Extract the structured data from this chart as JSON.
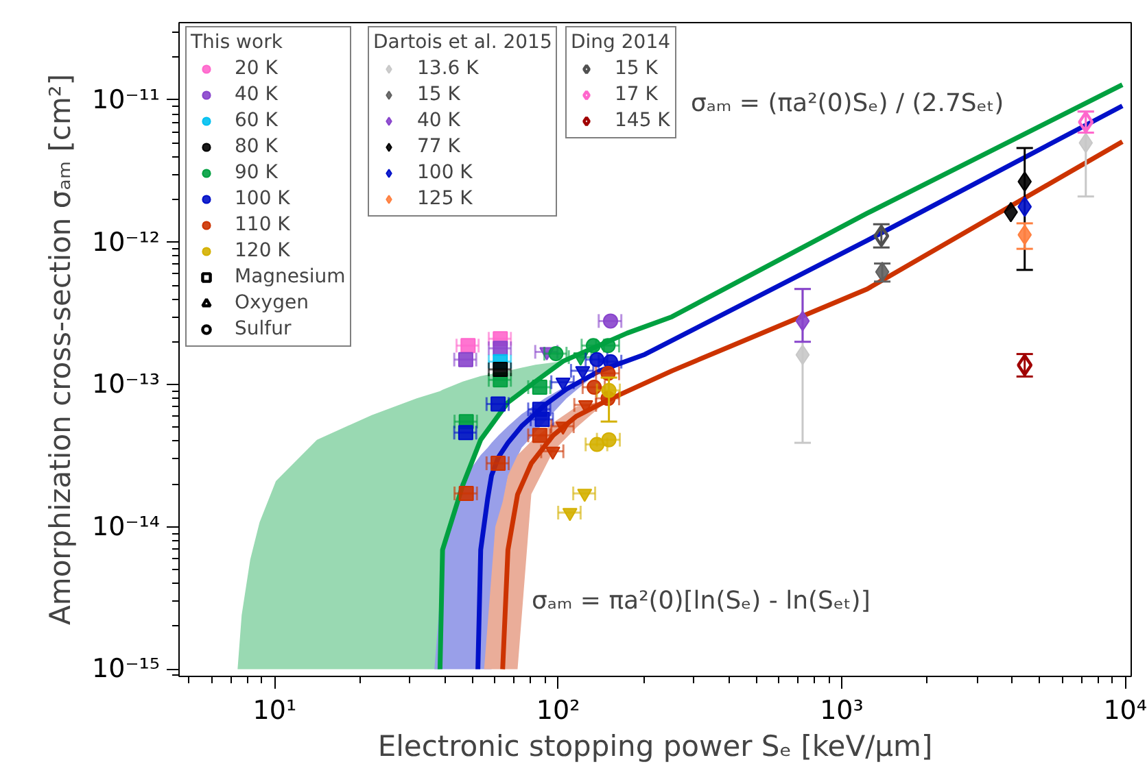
{
  "chart_data": {
    "type": "scatter",
    "xlabel": "Electronic stopping power Sₑ [keV/µm]",
    "ylabel": "Amorphization cross-section σₐₘ [cm²]",
    "log": "xy",
    "grid": false,
    "legend": "top left",
    "legend_title": [
      "This work",
      "Dartois et al. 2015",
      "Ding 2014"
    ],
    "xlim": [
      4.6,
      10500
    ],
    "ylim": [
      8.9e-16,
      3.5e-11
    ],
    "xticks": [
      {
        "value": 10,
        "label": "10¹"
      },
      {
        "value": 100,
        "label": "10²"
      },
      {
        "value": 1000,
        "label": "10³"
      },
      {
        "value": 10000,
        "label": "10⁴"
      }
    ],
    "yticks": [
      {
        "value": 1e-15,
        "label": "10⁻¹⁵"
      },
      {
        "value": 1e-14,
        "label": "10⁻¹⁴"
      },
      {
        "value": 1e-13,
        "label": "10⁻¹³"
      },
      {
        "value": 1e-12,
        "label": "10⁻¹²"
      },
      {
        "value": 1e-11,
        "label": "10⁻¹¹"
      }
    ],
    "annotations": [
      "σₐₘ  = (πa²(0)Sₑ) / (2.7Sₑₜ)",
      "σₐₘ  = πa²(0)[ln(Sₑ) - ln(Sₑₜ)]"
    ],
    "series": [
      {
        "type": "line",
        "color": "#00a040",
        "x": [
          7.4,
          7.65,
          8.2,
          8.85,
          10.1,
          14.1,
          22,
          31.7,
          38.3,
          39.1,
          46.1,
          53.3,
          66.5,
          83.1,
          104,
          175,
          252,
          1230,
          9770
        ],
        "values": [
          null,
          null,
          null,
          null,
          null,
          null,
          null,
          null,
          1e-15,
          6.9e-15,
          1.97e-14,
          4.1e-14,
          7.5e-14,
          1.05e-13,
          1.46e-13,
          2.3e-13,
          3e-13,
          1.6e-12,
          1.28e-11
        ],
        "upper": [
          1e-15,
          2.4e-15,
          5.9e-15,
          1.08e-14,
          2.1e-14,
          4.1e-14,
          6.1e-14,
          8e-14,
          9e-14,
          9.2e-14,
          1.05e-13,
          1.15e-13,
          1.25e-13,
          1.38e-13,
          1.46e-13,
          null,
          null,
          null,
          null
        ],
        "lower": [
          1e-15,
          1e-15,
          1e-15,
          1e-15,
          1e-15,
          1e-15,
          1e-15,
          1e-15,
          1e-15,
          6.9e-15,
          1.97e-14,
          4.1e-14,
          7.5e-14,
          1.05e-13,
          1.46e-13,
          null,
          null,
          null,
          null
        ]
      },
      {
        "type": "line",
        "color": "#0010c8",
        "x": [
          36.6,
          39.5,
          45,
          52.1,
          53.3,
          56.4,
          58.2,
          61.6,
          66.5,
          74.3,
          89.7,
          107,
          140,
          202,
          1230,
          9770
        ],
        "values": [
          null,
          null,
          null,
          1e-15,
          6.9e-15,
          1.58e-14,
          2.3e-14,
          3.1e-14,
          3.9e-14,
          5.1e-14,
          7.2e-14,
          9.3e-14,
          1.25e-13,
          1.63e-13,
          1.03e-12,
          9.1e-12
        ],
        "upper": [
          1e-15,
          6.9e-15,
          2e-14,
          3e-14,
          3.2e-14,
          3.6e-14,
          3.9e-14,
          4.4e-14,
          5.1e-14,
          6.2e-14,
          8e-14,
          9.8e-14,
          1.25e-13,
          null,
          null,
          null
        ],
        "lower": [
          1e-15,
          1e-15,
          1e-15,
          1e-15,
          1e-15,
          1e-15,
          1e-15,
          1e-14,
          2.25e-14,
          3.6e-14,
          5.5e-14,
          8e-14,
          1.25e-13,
          null,
          null,
          null
        ]
      },
      {
        "type": "line",
        "color": "#cc3300",
        "x": [
          54.8,
          60,
          63.7,
          66.5,
          71.9,
          80.4,
          96,
          116,
          150,
          252,
          1230,
          9770
        ],
        "values": [
          null,
          null,
          1e-15,
          6.9e-15,
          1.69e-14,
          2.8e-14,
          4.4e-14,
          6e-14,
          7.8e-14,
          1.25e-13,
          4.7e-13,
          5.1e-12
        ],
        "upper": [
          1e-15,
          1e-14,
          1.5e-14,
          2.3e-14,
          3.2e-14,
          4e-14,
          5.4e-14,
          7e-14,
          7.8e-14,
          null,
          null,
          null
        ],
        "lower": [
          1e-15,
          1e-15,
          1e-15,
          1e-15,
          1e-15,
          1.7e-14,
          3.4e-14,
          5e-14,
          7.8e-14,
          null,
          null,
          null
        ]
      },
      {
        "name": "20 K",
        "color": "#ff66cc",
        "marker": "circle"
      },
      {
        "name": "40 K",
        "color": "#8844cc",
        "marker": "circle"
      },
      {
        "name": "60 K",
        "color": "#00c0f0",
        "marker": "circle"
      },
      {
        "name": "80 K",
        "color": "#000000",
        "marker": "circle"
      },
      {
        "name": "90 K",
        "color": "#00a040",
        "marker": "circle"
      },
      {
        "name": "100 K",
        "color": "#0010c8",
        "marker": "circle"
      },
      {
        "name": "110 K",
        "color": "#cc3300",
        "marker": "circle"
      },
      {
        "name": "120 K",
        "color": "#d4b000",
        "marker": "circle"
      },
      {
        "name": "Magnesium",
        "color": "#000000",
        "marker": "square_open"
      },
      {
        "name": "Oxygen",
        "color": "#000000",
        "marker": "triangle_open"
      },
      {
        "name": "Sulfur",
        "color": "#000000",
        "marker": "circle_open"
      },
      {
        "color": "#ff66cc",
        "marker": "square",
        "x": [
          48.1,
          62.5
        ],
        "values": [
          1.88e-13,
          2.1e-13
        ],
        "xerrors": [
          4.3,
          5.6
        ]
      },
      {
        "color": "#8844cc",
        "marker": "square",
        "x": [
          47.2,
          62.5
        ],
        "values": [
          1.5e-13,
          1.8e-13
        ],
        "xerrors": [
          4.2,
          5.6
        ]
      },
      {
        "color": "#8844cc",
        "marker": "triangle",
        "x": [
          91.2
        ],
        "values": [
          1.7e-13
        ],
        "xerrors": [
          8.2
        ]
      },
      {
        "color": "#8844cc",
        "marker": "circle",
        "x": [
          153
        ],
        "values": [
          2.8e-13
        ],
        "xerrors": [
          14
        ]
      },
      {
        "color": "#00a040",
        "marker": "square",
        "x": [
          47.4,
          62.5,
          86.1
        ],
        "values": [
          5.5e-14,
          1.08e-13,
          9.6e-14
        ],
        "xerrors": [
          4.3,
          5.6,
          7.7
        ]
      },
      {
        "color": "#00c0f0",
        "marker": "square",
        "x": [
          62.5
        ],
        "values": [
          1.45e-13
        ],
        "xerrors": [
          5.6
        ]
      },
      {
        "color": "#000000",
        "marker": "square",
        "x": [
          62.5
        ],
        "values": [
          1.28e-13
        ],
        "xerrors": [
          5.6
        ]
      },
      {
        "color": "#00a040",
        "marker": "triangle",
        "x": [
          120
        ],
        "values": [
          1.56e-13
        ],
        "xerrors": [
          11
        ]
      },
      {
        "color": "#00a040",
        "marker": "circle",
        "x": [
          98.2,
          133,
          150
        ],
        "values": [
          1.65e-13,
          1.88e-13,
          1.88e-13
        ],
        "xerrors": [
          8.8,
          12,
          14
        ]
      },
      {
        "color": "#0010c8",
        "marker": "square",
        "x": [
          47.2,
          61.4,
          86.1,
          87.9
        ],
        "values": [
          4.6e-14,
          7.3e-14,
          6.7e-14,
          5.7e-14
        ],
        "xerrors": [
          4.2,
          5.5,
          7.7,
          7.9
        ]
      },
      {
        "color": "#0010c8",
        "marker": "triangle",
        "x": [
          104,
          122
        ],
        "values": [
          1.04e-13,
          1.25e-13
        ],
        "xerrors": [
          9.4,
          11
        ]
      },
      {
        "color": "#0010c8",
        "marker": "circle",
        "x": [
          137,
          153
        ],
        "values": [
          1.5e-13,
          1.45e-13
        ],
        "xerrors": [
          12,
          14
        ]
      },
      {
        "color": "#cc3300",
        "marker": "square",
        "x": [
          47.4,
          61.4,
          86.1
        ],
        "values": [
          1.72e-14,
          2.8e-14,
          4.4e-14
        ],
        "xerrors": [
          4.3,
          5.5,
          7.7
        ]
      },
      {
        "color": "#cc3300",
        "marker": "triangle",
        "x": [
          95.7,
          104,
          125
        ],
        "values": [
          3.4e-14,
          5.1e-14,
          7.2e-14
        ],
        "xerrors": [
          8.6,
          9.4,
          11
        ]
      },
      {
        "color": "#cc3300",
        "marker": "circle",
        "x": [
          134,
          150,
          150
        ],
        "values": [
          9.6e-14,
          1.2e-13,
          8e-14
        ],
        "xerrors": [
          12,
          14,
          14
        ]
      },
      {
        "color": "#d4b000",
        "marker": "circle",
        "x": [
          137,
          151,
          151
        ],
        "values": [
          3.8e-14,
          9.1e-14,
          4.1e-14
        ],
        "xerrors": [
          12,
          14,
          14
        ],
        "errors": [
          null,
          [
            5.5e-14,
            1.12e-13
          ],
          null
        ]
      },
      {
        "color": "#d4b000",
        "marker": "triangle",
        "x": [
          110,
          124
        ],
        "values": [
          1.26e-14,
          1.72e-14
        ],
        "xerrors": [
          10,
          11
        ]
      },
      {
        "name": "13.6 K",
        "color": "#c8c8c8",
        "marker": "diamond",
        "x": [
          728,
          7260
        ],
        "values": [
          1.62e-13,
          5e-12
        ],
        "errors": [
          [
            3.9e-14,
            4.7e-13
          ],
          [
            2.1e-12,
            8.3e-12
          ]
        ]
      },
      {
        "name": "15 K",
        "color": "#606060",
        "marker": "diamond",
        "x": [
          1390
        ],
        "values": [
          6.2e-13
        ],
        "errors": [
          [
            5.3e-13,
            7.1e-13
          ]
        ]
      },
      {
        "name": "40 K",
        "color": "#8844cc",
        "marker": "diamond",
        "x": [
          728
        ],
        "values": [
          2.8e-13
        ],
        "errors": [
          [
            2e-13,
            4.7e-13
          ]
        ]
      },
      {
        "name": "77 K",
        "color": "#000000",
        "marker": "diamond",
        "x": [
          3950,
          4420
        ],
        "values": [
          1.63e-12,
          2.67e-12
        ],
        "errors": [
          null,
          [
            6.4e-13,
            4.6e-12
          ]
        ]
      },
      {
        "name": "100 K",
        "color": "#0010c8",
        "marker": "diamond",
        "x": [
          4420
        ],
        "values": [
          1.78e-12
        ]
      },
      {
        "name": "125 K",
        "color": "#ff8040",
        "marker": "diamond",
        "x": [
          4420
        ],
        "values": [
          1.13e-12
        ],
        "errors": [
          [
            9e-13,
            1.36e-12
          ]
        ]
      },
      {
        "name": "15 K",
        "color": "#505050",
        "marker": "diamond_open",
        "x": [
          1380
        ],
        "values": [
          1.11e-12
        ],
        "errors": [
          [
            9.2e-13,
            1.34e-12
          ]
        ]
      },
      {
        "name": "17 K",
        "color": "#ff66cc",
        "marker": "diamond_open",
        "x": [
          7260
        ],
        "values": [
          7e-12
        ],
        "errors": [
          [
            5.9e-12,
            8.3e-12
          ]
        ]
      },
      {
        "name": "145 K",
        "color": "#a00000",
        "marker": "diamond_open",
        "x": [
          4420
        ],
        "values": [
          1.37e-13
        ],
        "errors": [
          [
            1.14e-13,
            1.64e-13
          ]
        ]
      }
    ]
  }
}
